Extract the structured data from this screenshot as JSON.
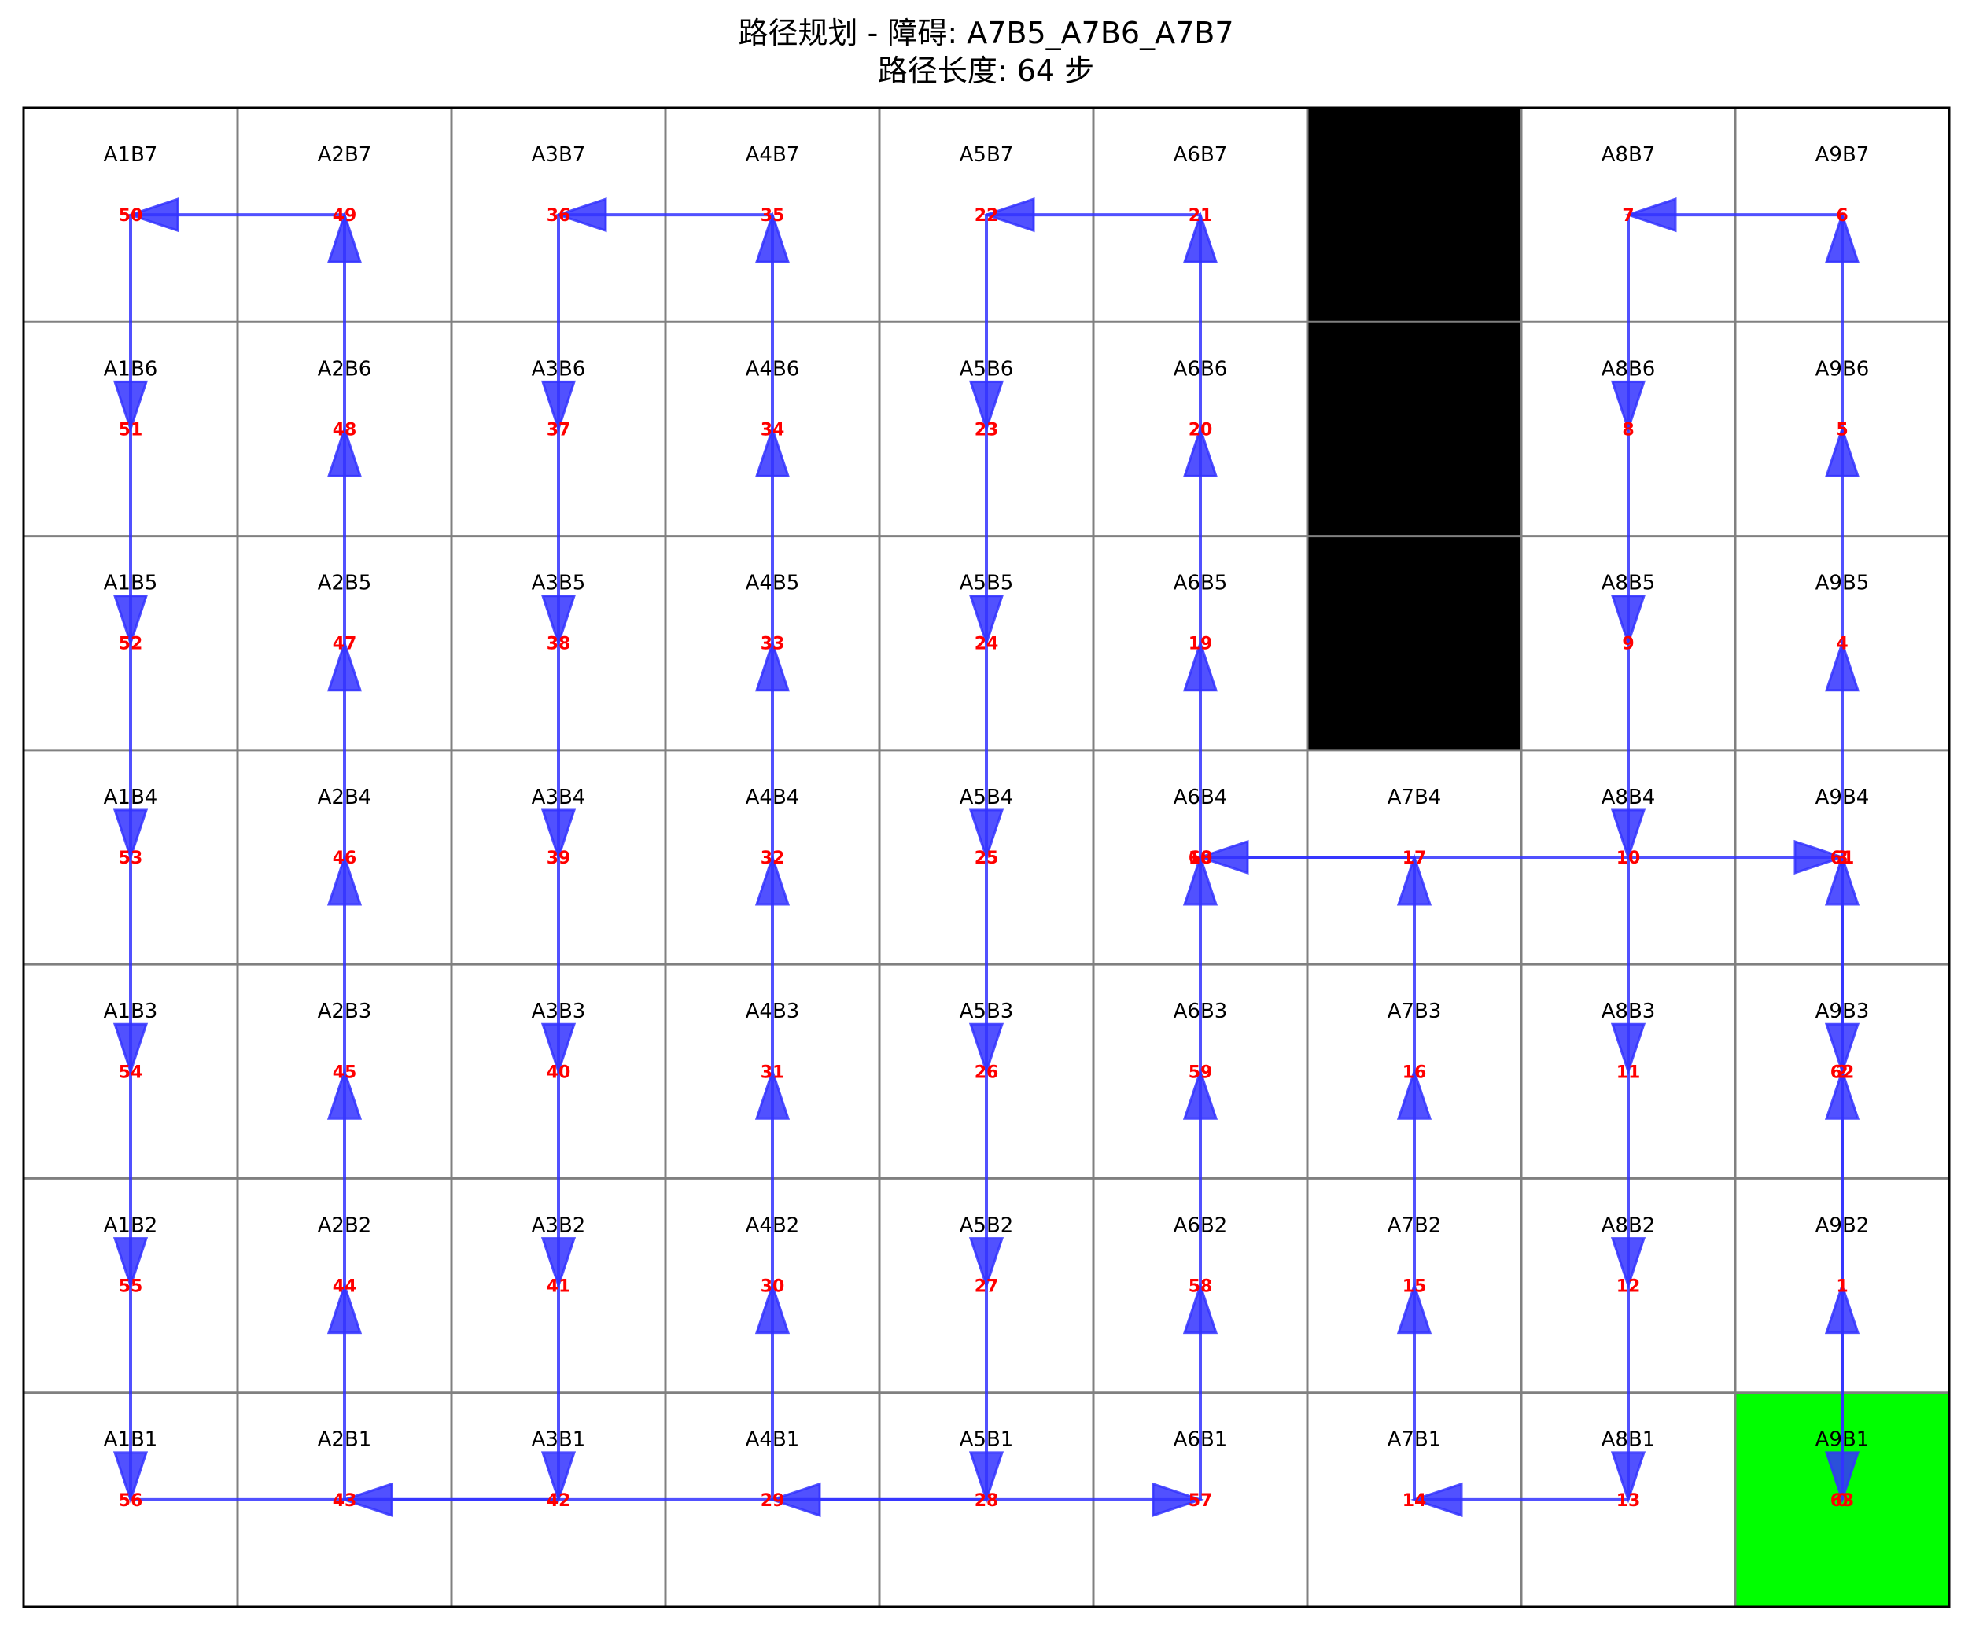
{
  "title": {
    "line1": "路径规划 - 障碍: A7B5_A7B6_A7B7",
    "line2": "路径长度: 64 步"
  },
  "grid": {
    "cols": 9,
    "rows": 7,
    "obstacles": [
      "A7B5",
      "A7B6",
      "A7B7"
    ],
    "highlight_cell": "A9B1",
    "colors": {
      "obstacle": "#000000",
      "highlight": "#00ff00",
      "grid_line": "#808080",
      "border": "#000000",
      "path": "#3333ff",
      "step_number": "#ff0000"
    }
  },
  "path": [
    "A9B1",
    "A9B2",
    "A9B3",
    "A9B4",
    "A9B5",
    "A9B6",
    "A9B7",
    "A8B7",
    "A8B6",
    "A8B5",
    "A8B4",
    "A8B3",
    "A8B2",
    "A8B1",
    "A7B1",
    "A7B2",
    "A7B3",
    "A7B4",
    "A6B4",
    "A6B5",
    "A6B6",
    "A6B7",
    "A5B7",
    "A5B6",
    "A5B5",
    "A5B4",
    "A5B3",
    "A5B2",
    "A5B1",
    "A4B1",
    "A4B2",
    "A4B3",
    "A4B4",
    "A4B5",
    "A4B6",
    "A4B7",
    "A3B7",
    "A3B6",
    "A3B5",
    "A3B4",
    "A3B3",
    "A3B2",
    "A3B1",
    "A2B1",
    "A2B2",
    "A2B3",
    "A2B4",
    "A2B5",
    "A2B6",
    "A2B7",
    "A1B7",
    "A1B6",
    "A1B5",
    "A1B4",
    "A1B3",
    "A1B2",
    "A1B1",
    "A6B1",
    "A6B2",
    "A6B3",
    "A6B4",
    "A9B4",
    "A9B3",
    "A9B1"
  ]
}
